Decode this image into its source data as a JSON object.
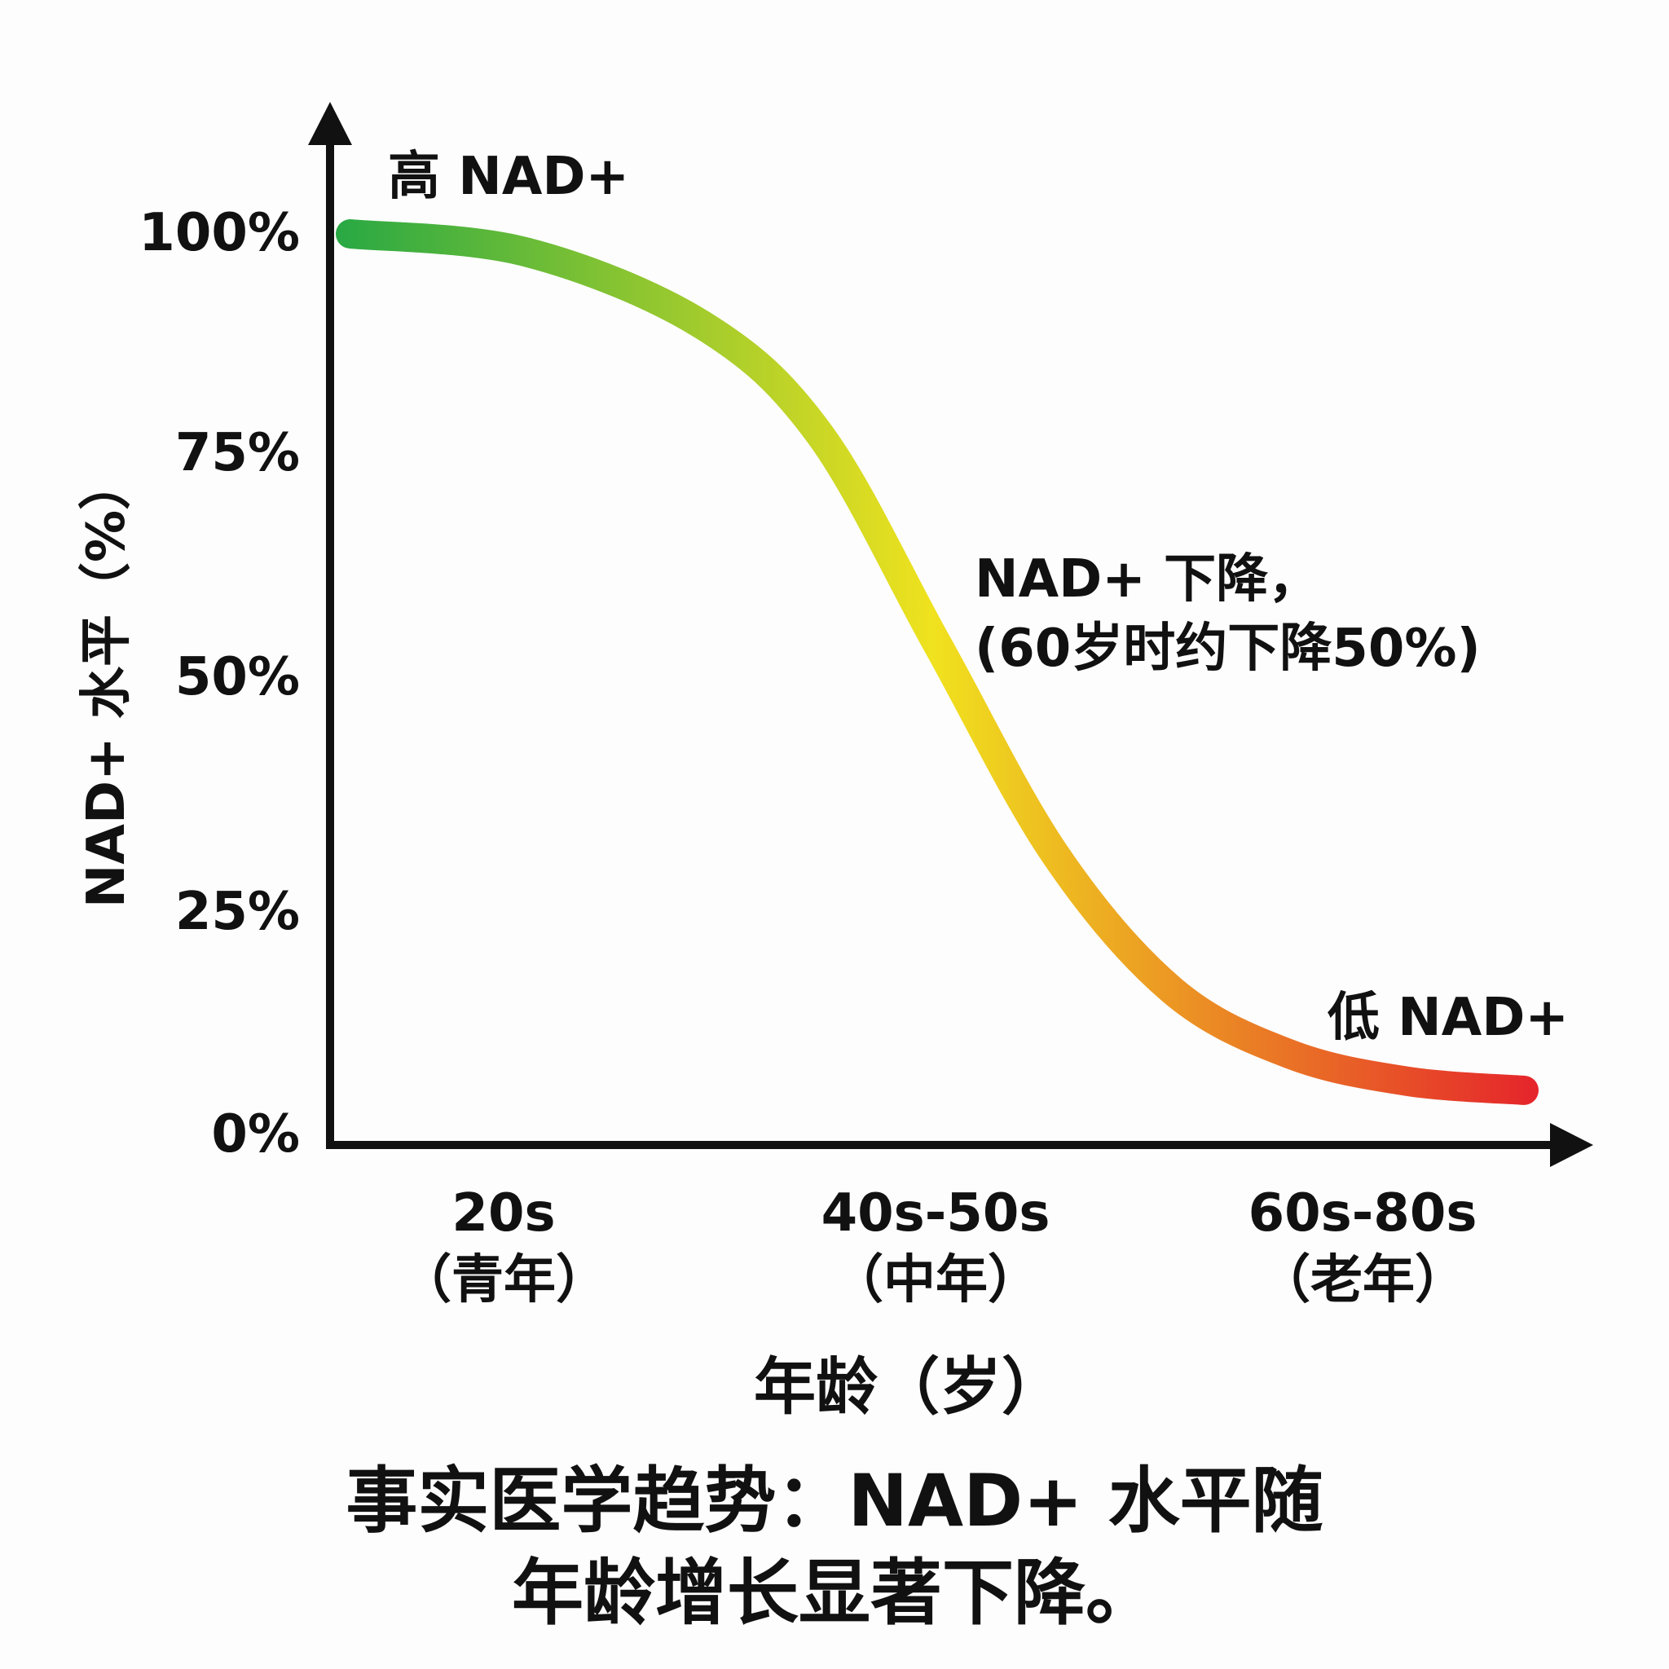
{
  "chart_data": {
    "type": "line",
    "ylabel": "NAD+ 水平（%）",
    "xlabel": "年龄（岁）",
    "y_ticks": [
      "100%",
      "75%",
      "50%",
      "25%",
      "0%"
    ],
    "ylim": [
      0,
      100
    ],
    "categories": [
      {
        "label": "20s",
        "sub": "（青年）"
      },
      {
        "label": "40s-50s",
        "sub": "（中年）"
      },
      {
        "label": "60s-80s",
        "sub": "（老年）"
      }
    ],
    "series": [
      {
        "x": [
          0,
          0.15,
          0.3,
          0.4,
          0.5,
          0.6,
          0.7,
          0.8,
          0.9,
          1.0
        ],
        "y": [
          100,
          98,
          90,
          78,
          55,
          32,
          17,
          10,
          7,
          6
        ]
      }
    ],
    "annotations": {
      "high": "高 NAD+",
      "decline_line1": "NAD+ 下降，",
      "decline_line2": "(60岁时约下降50%)",
      "low": "低 NAD+"
    },
    "caption_line1": "事实医学趋势：NAD+ 水平随",
    "caption_line2": "年龄增长显著下降。",
    "gradient_colors": [
      "#27a844",
      "#f0e21e",
      "#e5262b"
    ],
    "grid": false
  }
}
